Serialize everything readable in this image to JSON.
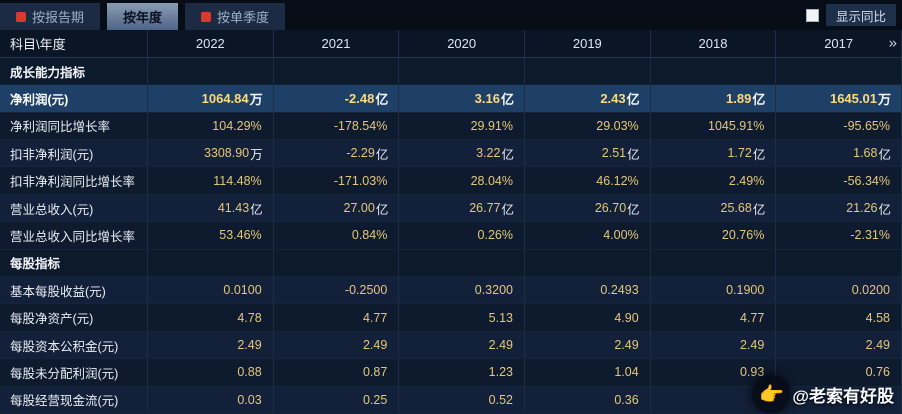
{
  "colors": {
    "background": "#0a1624",
    "value_gold": "#e5c77b",
    "highlight_row_bg": "#1f4066",
    "highlight_value": "#ffd97a",
    "active_tab_text": "#0b1220",
    "tab_icon_red": "#d93a30"
  },
  "tabs": [
    {
      "label": "按报告期",
      "active": false,
      "icon": "red-badge-icon"
    },
    {
      "label": "按年度",
      "active": true
    },
    {
      "label": "按单季度",
      "active": false,
      "icon": "red-badge-icon"
    }
  ],
  "controls": {
    "show_yoy_label": "显示同比",
    "checkbox_checked": false
  },
  "table": {
    "corner_label": "科目\\年度",
    "years": [
      "2022",
      "2021",
      "2020",
      "2019",
      "2018",
      "2017"
    ],
    "more_label": "»",
    "rows": [
      {
        "type": "section",
        "label": "成长能力指标",
        "values": []
      },
      {
        "type": "highlight",
        "label": "净利润(元)",
        "values": [
          {
            "n": "1064.84",
            "u": "万"
          },
          {
            "n": "-2.48",
            "u": "亿"
          },
          {
            "n": "3.16",
            "u": "亿"
          },
          {
            "n": "2.43",
            "u": "亿"
          },
          {
            "n": "1.89",
            "u": "亿"
          },
          {
            "n": "1645.01",
            "u": "万"
          }
        ]
      },
      {
        "type": "data",
        "label": "净利润同比增长率",
        "values": [
          {
            "n": "104.29%",
            "u": ""
          },
          {
            "n": "-178.54%",
            "u": ""
          },
          {
            "n": "29.91%",
            "u": ""
          },
          {
            "n": "29.03%",
            "u": ""
          },
          {
            "n": "1045.91%",
            "u": ""
          },
          {
            "n": "-95.65%",
            "u": ""
          }
        ]
      },
      {
        "type": "data",
        "label": "扣非净利润(元)",
        "values": [
          {
            "n": "3308.90",
            "u": "万"
          },
          {
            "n": "-2.29",
            "u": "亿"
          },
          {
            "n": "3.22",
            "u": "亿"
          },
          {
            "n": "2.51",
            "u": "亿"
          },
          {
            "n": "1.72",
            "u": "亿"
          },
          {
            "n": "1.68",
            "u": "亿"
          }
        ]
      },
      {
        "type": "data",
        "label": "扣非净利润同比增长率",
        "values": [
          {
            "n": "114.48%",
            "u": ""
          },
          {
            "n": "-171.03%",
            "u": ""
          },
          {
            "n": "28.04%",
            "u": ""
          },
          {
            "n": "46.12%",
            "u": ""
          },
          {
            "n": "2.49%",
            "u": ""
          },
          {
            "n": "-56.34%",
            "u": ""
          }
        ]
      },
      {
        "type": "data",
        "label": "营业总收入(元)",
        "values": [
          {
            "n": "41.43",
            "u": "亿"
          },
          {
            "n": "27.00",
            "u": "亿"
          },
          {
            "n": "26.77",
            "u": "亿"
          },
          {
            "n": "26.70",
            "u": "亿"
          },
          {
            "n": "25.68",
            "u": "亿"
          },
          {
            "n": "21.26",
            "u": "亿"
          }
        ]
      },
      {
        "type": "data",
        "label": "营业总收入同比增长率",
        "values": [
          {
            "n": "53.46%",
            "u": ""
          },
          {
            "n": "0.84%",
            "u": ""
          },
          {
            "n": "0.26%",
            "u": ""
          },
          {
            "n": "4.00%",
            "u": ""
          },
          {
            "n": "20.76%",
            "u": ""
          },
          {
            "n": "-2.31%",
            "u": ""
          }
        ]
      },
      {
        "type": "section",
        "label": "每股指标",
        "values": []
      },
      {
        "type": "data",
        "label": "基本每股收益(元)",
        "values": [
          {
            "n": "0.0100",
            "u": ""
          },
          {
            "n": "-0.2500",
            "u": ""
          },
          {
            "n": "0.3200",
            "u": ""
          },
          {
            "n": "0.2493",
            "u": ""
          },
          {
            "n": "0.1900",
            "u": ""
          },
          {
            "n": "0.0200",
            "u": ""
          }
        ]
      },
      {
        "type": "data",
        "label": "每股净资产(元)",
        "values": [
          {
            "n": "4.78",
            "u": ""
          },
          {
            "n": "4.77",
            "u": ""
          },
          {
            "n": "5.13",
            "u": ""
          },
          {
            "n": "4.90",
            "u": ""
          },
          {
            "n": "4.77",
            "u": ""
          },
          {
            "n": "4.58",
            "u": ""
          }
        ]
      },
      {
        "type": "data",
        "label": "每股资本公积金(元)",
        "values": [
          {
            "n": "2.49",
            "u": ""
          },
          {
            "n": "2.49",
            "u": ""
          },
          {
            "n": "2.49",
            "u": ""
          },
          {
            "n": "2.49",
            "u": ""
          },
          {
            "n": "2.49",
            "u": ""
          },
          {
            "n": "2.49",
            "u": ""
          }
        ]
      },
      {
        "type": "data",
        "label": "每股未分配利润(元)",
        "values": [
          {
            "n": "0.88",
            "u": ""
          },
          {
            "n": "0.87",
            "u": ""
          },
          {
            "n": "1.23",
            "u": ""
          },
          {
            "n": "1.04",
            "u": ""
          },
          {
            "n": "0.93",
            "u": ""
          },
          {
            "n": "0.76",
            "u": ""
          }
        ]
      },
      {
        "type": "data",
        "label": "每股经营现金流(元)",
        "values": [
          {
            "n": "0.03",
            "u": ""
          },
          {
            "n": "0.25",
            "u": ""
          },
          {
            "n": "0.52",
            "u": ""
          },
          {
            "n": "0.36",
            "u": ""
          },
          {
            "n": "",
            "u": ""
          },
          {
            "n": "",
            "u": ""
          }
        ]
      }
    ]
  },
  "watermark": {
    "emoji": "👉",
    "text": "@老索有好股"
  }
}
